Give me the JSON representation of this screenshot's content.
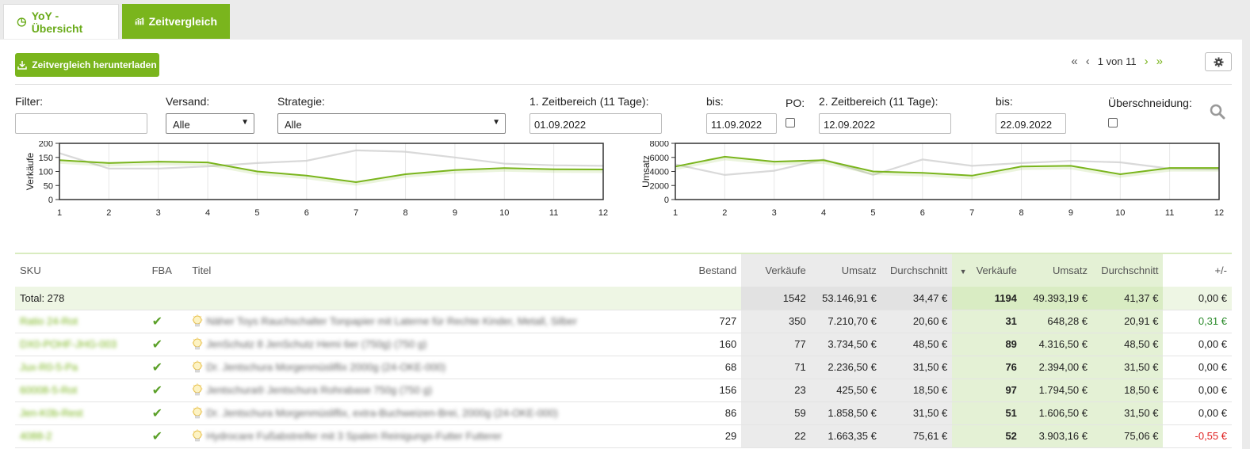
{
  "tabs": [
    {
      "label": "YoY - Übersicht",
      "icon": "pie-chart-icon"
    },
    {
      "label": "Zeitvergleich",
      "icon": "bar-chart-icon"
    }
  ],
  "toolbar": {
    "download_label": "Zeitvergleich herunterladen",
    "pager_text": "1 von 11"
  },
  "filters": {
    "filter_label": "Filter:",
    "filter_value": "",
    "versand_label": "Versand:",
    "versand_value": "Alle",
    "strategie_label": "Strategie:",
    "strategie_value": "Alle",
    "range1_label": "1. Zeitbereich (11 Tage):",
    "range1_from": "01.09.2022",
    "bis1_label": "bis:",
    "range1_to": "11.09.2022",
    "po_label": "PO:",
    "range2_label": "2. Zeitbereich (11 Tage):",
    "range2_from": "12.09.2022",
    "bis2_label": "bis:",
    "range2_to": "22.09.2022",
    "overlap_label": "Überschneidung:"
  },
  "chart_data": [
    {
      "type": "line",
      "ylabel": "Verkäufe",
      "x": [
        1,
        2,
        3,
        4,
        5,
        6,
        7,
        8,
        9,
        10,
        11,
        12
      ],
      "ylim": [
        0,
        200
      ],
      "yticks": [
        0,
        50,
        100,
        150,
        200
      ],
      "series": [
        {
          "color": "#7ab51d",
          "values": [
            140,
            130,
            135,
            132,
            100,
            85,
            62,
            90,
            105,
            112,
            108,
            107
          ]
        },
        {
          "color": "#d0d0d0",
          "values": [
            165,
            110,
            110,
            118,
            130,
            138,
            175,
            170,
            150,
            128,
            122,
            120
          ]
        }
      ]
    },
    {
      "type": "line",
      "ylabel": "Umsatz",
      "x": [
        1,
        2,
        3,
        4,
        5,
        6,
        7,
        8,
        9,
        10,
        11,
        12
      ],
      "ylim": [
        0,
        8000
      ],
      "yticks": [
        0,
        2000,
        4000,
        6000,
        8000
      ],
      "series": [
        {
          "color": "#7ab51d",
          "values": [
            4700,
            6100,
            5400,
            5600,
            4000,
            3800,
            3400,
            4700,
            4800,
            3600,
            4500,
            4500
          ]
        },
        {
          "color": "#d0d0d0",
          "values": [
            5000,
            3500,
            4100,
            5700,
            3500,
            5700,
            4800,
            5200,
            5500,
            5300,
            4400,
            4300
          ]
        }
      ]
    }
  ],
  "table": {
    "headers": {
      "sku": "SKU",
      "fba": "FBA",
      "titel": "Titel",
      "bestand": "Bestand",
      "v1": "Verkäufe",
      "u1": "Umsatz",
      "d1": "Durchschnitt",
      "v2": "Verkäufe",
      "u2": "Umsatz",
      "d2": "Durchschnitt",
      "diff": "+/-"
    },
    "total": {
      "label": "Total: 278",
      "v1": "1542",
      "u1": "53.146,91 €",
      "d1": "34,47 €",
      "v2": "1194",
      "u2": "49.393,19 €",
      "d2": "41,37 €",
      "diff": "0,00 €"
    },
    "rows": [
      {
        "sku": "Ratio 24-Rot",
        "titel": "Näher Toys Rauchschalter Tonpapier mit Laterne für Rechte Kinder, Metall, Silber",
        "bestand": "727",
        "v1": "350",
        "u1": "7.210,70 €",
        "d1": "20,60 €",
        "v2": "31",
        "u2": "648,28 €",
        "d2": "20,91 €",
        "diff": "0,31 €",
        "diff_sign": "pos"
      },
      {
        "sku": "DX0-POHF-JHG-003",
        "titel": "JenSchutz 8 JenSchutz Hemi 6er (750g) (750 g)",
        "bestand": "160",
        "v1": "77",
        "u1": "3.734,50 €",
        "d1": "48,50 €",
        "v2": "89",
        "u2": "4.316,50 €",
        "d2": "48,50 €",
        "diff": "0,00 €",
        "diff_sign": "zero"
      },
      {
        "sku": "Jux-R0-5-Pa",
        "titel": "Dr. Jentschura Morgenmüsliflix 2000g (24-OKE-000)",
        "bestand": "68",
        "v1": "71",
        "u1": "2.236,50 €",
        "d1": "31,50 €",
        "v2": "76",
        "u2": "2.394,00 €",
        "d2": "31,50 €",
        "diff": "0,00 €",
        "diff_sign": "zero"
      },
      {
        "sku": "60008-5-Rot",
        "titel": "Jentschura® Jentschura Rohrabase 750g (750 g)",
        "bestand": "156",
        "v1": "23",
        "u1": "425,50 €",
        "d1": "18,50 €",
        "v2": "97",
        "u2": "1.794,50 €",
        "d2": "18,50 €",
        "diff": "0,00 €",
        "diff_sign": "zero"
      },
      {
        "sku": "Jen-K0b-Rest",
        "titel": "Dr. Jentschura Morgenmüsliflix, extra-Buchweizen-Brei, 2000g (24-OKE-000)",
        "bestand": "86",
        "v1": "59",
        "u1": "1.858,50 €",
        "d1": "31,50 €",
        "v2": "51",
        "u2": "1.606,50 €",
        "d2": "31,50 €",
        "diff": "0,00 €",
        "diff_sign": "zero"
      },
      {
        "sku": "4088-2",
        "titel": "Hydrocare Fußabstreifer mit 3 Spalen Reinigungs-Futter Futterer",
        "bestand": "29",
        "v1": "22",
        "u1": "1.663,35 €",
        "d1": "75,61 €",
        "v2": "52",
        "u2": "3.903,16 €",
        "d2": "75,06 €",
        "diff": "-0,55 €",
        "diff_sign": "neg"
      }
    ]
  }
}
